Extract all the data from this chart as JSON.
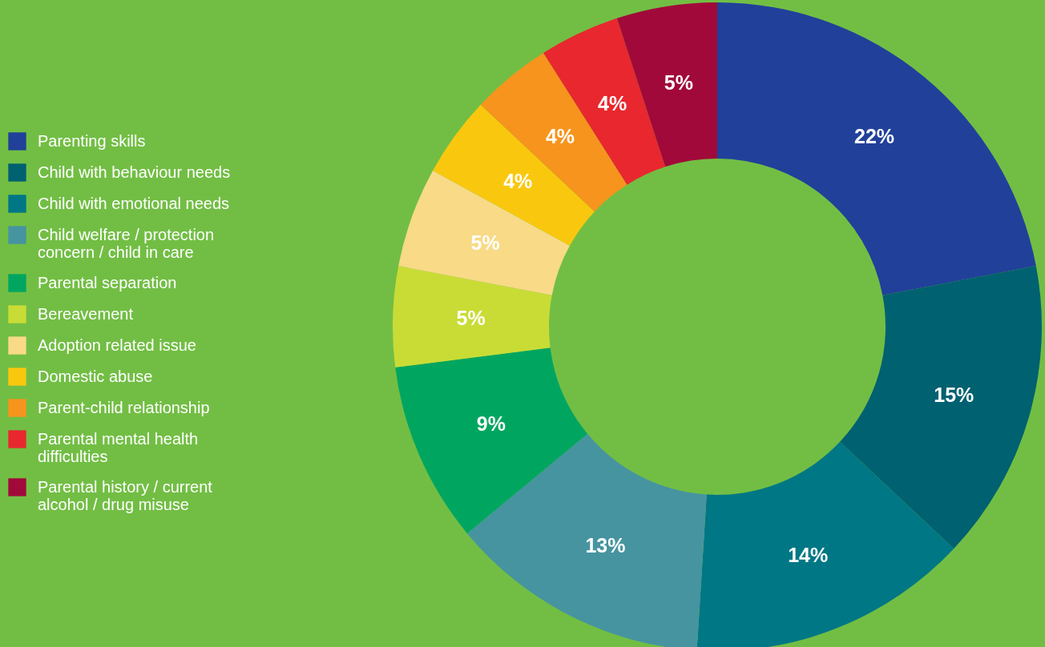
{
  "chart_data": {
    "type": "donut",
    "categories": [
      "Parenting skills",
      "Child with behaviour needs",
      "Child with emotional needs",
      "Child welfare / protection concern / child in care",
      "Parental separation",
      "Bereavement",
      "Adoption related issue",
      "Domestic abuse",
      "Parent-child relationship",
      "Parental mental health difficulties",
      "Parental history / current alcohol / drug misuse"
    ],
    "values": [
      22,
      15,
      14,
      13,
      9,
      5,
      5,
      4,
      4,
      4,
      5
    ],
    "value_labels": [
      "22%",
      "15%",
      "14%",
      "13%",
      "9%",
      "5%",
      "5%",
      "4%",
      "4%",
      "4%",
      "5%"
    ],
    "colors": [
      "#21409a",
      "#006170",
      "#007785",
      "#4694a0",
      "#00a660",
      "#c9dc36",
      "#f8da87",
      "#f9c80e",
      "#f7941d",
      "#e8282e",
      "#a1093a"
    ],
    "legend": "left"
  }
}
